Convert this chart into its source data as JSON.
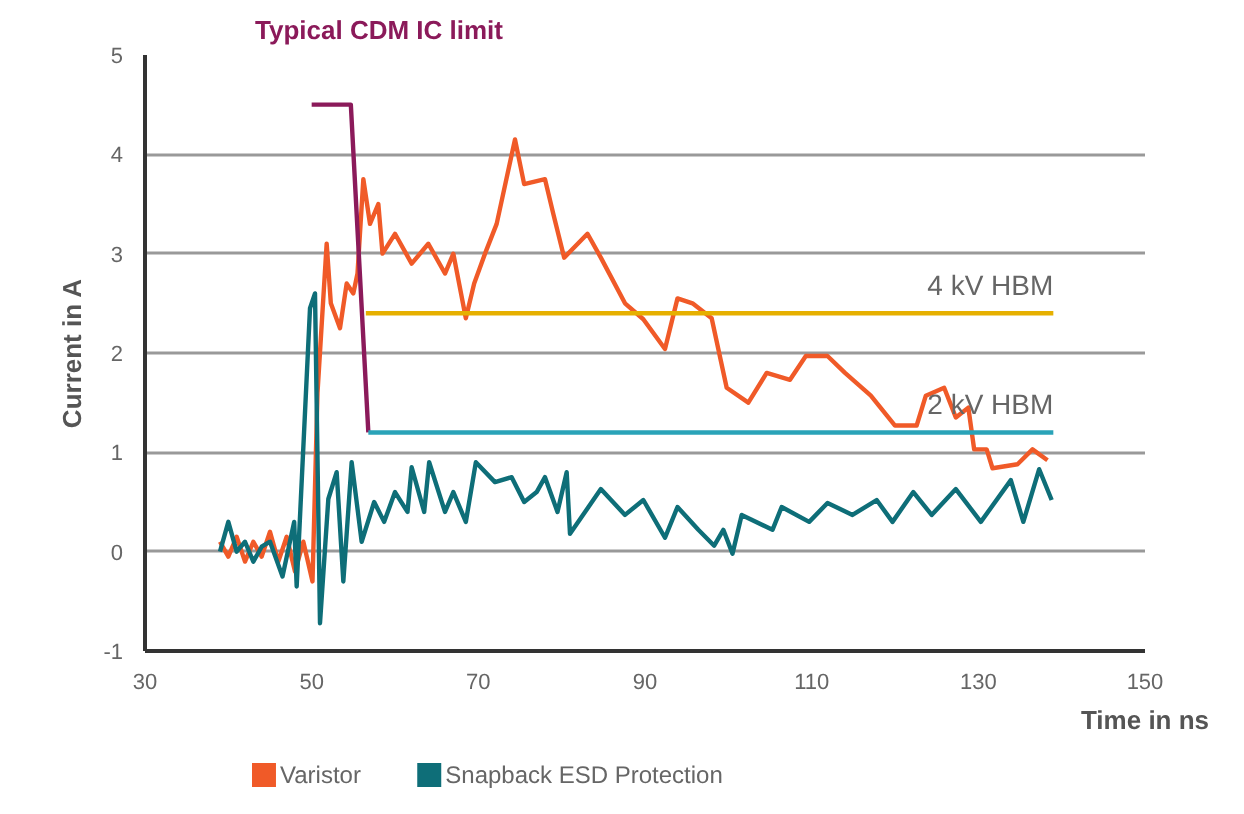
{
  "chart_data": {
    "type": "line",
    "title": "Typical CDM IC limit",
    "xlabel": "Time in ns",
    "ylabel": "Current in A",
    "xlim": [
      30,
      150
    ],
    "xticks": [
      30,
      50,
      70,
      90,
      110,
      130,
      150
    ],
    "ylim": [
      -1,
      5
    ],
    "yticks": [
      -1,
      0,
      1,
      2,
      3,
      4,
      5
    ],
    "grid": "y",
    "legend": "bottom left",
    "marker": "none",
    "line_style": "solid",
    "annotations": [
      {
        "text": "4 kV HBM",
        "x": 139,
        "y": 2.4
      },
      {
        "text": "2 kV HBM",
        "x": 139,
        "y": 1.2
      }
    ],
    "series": [
      {
        "name": "Varistor",
        "color": "#f05a28",
        "x": [
          39,
          40,
          41,
          42,
          43,
          44,
          45,
          46,
          47,
          48,
          49,
          50.1,
          50.7,
          51.8,
          52.3,
          53.4,
          54.2,
          55,
          55.5,
          56.2,
          57,
          58,
          58.5,
          60,
          62,
          64,
          66,
          67,
          68.5,
          69.5,
          70.8,
          72.2,
          74.4,
          75.5,
          78,
          79,
          80.3,
          83.1,
          84.7,
          87.6,
          89.8,
          92.4,
          93.9,
          95.7,
          98,
          99.8,
          102.4,
          104.6,
          107.4,
          109.3,
          111.9,
          114,
          117.1,
          120,
          122.6,
          123.7,
          125.9,
          127.3,
          128.8,
          129.5,
          131,
          131.7,
          134.7,
          136.5,
          138.3
        ],
        "values": [
          0.1,
          -0.05,
          0.15,
          -0.1,
          0.1,
          -0.05,
          0.2,
          -0.1,
          0.15,
          -0.2,
          0.1,
          -0.3,
          1.6,
          3.1,
          2.5,
          2.25,
          2.7,
          2.6,
          2.8,
          3.75,
          3.3,
          3.5,
          3.0,
          3.2,
          2.9,
          3.1,
          2.8,
          3.0,
          2.35,
          2.7,
          3.0,
          3.3,
          4.15,
          3.7,
          3.75,
          3.4,
          2.96,
          3.2,
          2.96,
          2.5,
          2.34,
          2.04,
          2.55,
          2.5,
          2.35,
          1.65,
          1.5,
          1.8,
          1.73,
          1.97,
          1.97,
          1.8,
          1.57,
          1.27,
          1.27,
          1.57,
          1.65,
          1.35,
          1.45,
          1.03,
          1.03,
          0.84,
          0.88,
          1.03,
          0.92
        ]
      },
      {
        "name": "Snapback ESD Protection",
        "color": "#0e6e78",
        "x": [
          39,
          40,
          41,
          42,
          43,
          44,
          45,
          46.5,
          47.9,
          48.2,
          49.8,
          50.4,
          51,
          52,
          53,
          53.8,
          54.8,
          56,
          57.5,
          58.7,
          60,
          61.5,
          62,
          63.5,
          64.1,
          66,
          67,
          68.5,
          69.7,
          72,
          74,
          75.5,
          77,
          78,
          79.5,
          80.6,
          81,
          84.7,
          87.6,
          89.8,
          92.4,
          93.9,
          96.4,
          98.3,
          99.4,
          100.5,
          101.6,
          105.3,
          106.4,
          109.7,
          111.9,
          114.9,
          117.8,
          119.7,
          122.2,
          124.4,
          127.3,
          130.3,
          133.9,
          135.4,
          137.3,
          138.8
        ],
        "values": [
          0.0,
          0.3,
          0.0,
          0.1,
          -0.1,
          0.05,
          0.1,
          -0.25,
          0.3,
          -0.35,
          2.45,
          2.6,
          -0.72,
          0.53,
          0.8,
          -0.3,
          0.9,
          0.1,
          0.5,
          0.3,
          0.6,
          0.4,
          0.85,
          0.4,
          0.9,
          0.4,
          0.6,
          0.3,
          0.9,
          0.7,
          0.75,
          0.5,
          0.6,
          0.75,
          0.4,
          0.8,
          0.18,
          0.63,
          0.37,
          0.52,
          0.14,
          0.45,
          0.22,
          0.06,
          0.22,
          -0.02,
          0.37,
          0.22,
          0.45,
          0.3,
          0.49,
          0.37,
          0.52,
          0.3,
          0.6,
          0.37,
          0.63,
          0.3,
          0.72,
          0.3,
          0.83,
          0.52
        ]
      },
      {
        "color": "#8b1a5a",
        "x": [
          50,
          54.7,
          56.8
        ],
        "values": [
          4.5,
          4.5,
          1.2
        ]
      },
      {
        "color": "#e6b000",
        "x": [
          56.5,
          139
        ],
        "values": [
          2.4,
          2.4
        ]
      },
      {
        "color": "#2aa3b8",
        "x": [
          56.8,
          139
        ],
        "values": [
          1.2,
          1.2
        ]
      }
    ]
  }
}
